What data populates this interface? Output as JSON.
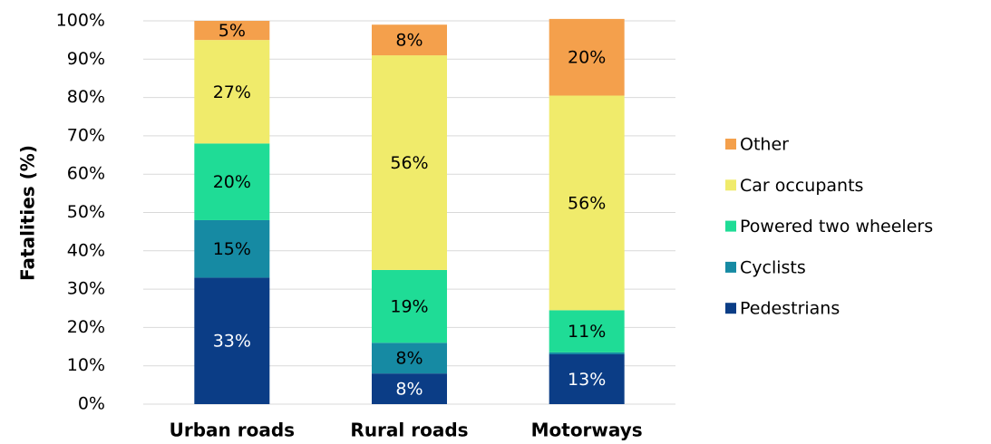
{
  "chart_data": {
    "type": "stacked_bar",
    "y_label": "Fatalities (%)",
    "categories": [
      "Urban roads",
      "Rural roads",
      "Motorways"
    ],
    "series": [
      {
        "name": "Pedestrians",
        "color": "#0b3d86",
        "values": [
          33,
          8,
          13
        ],
        "value_labels": [
          "33%",
          "8%",
          "13%"
        ]
      },
      {
        "name": "Cyclists",
        "color": "#168aa3",
        "values": [
          15,
          8,
          0.5
        ],
        "value_labels": [
          "15%",
          "8%",
          null
        ]
      },
      {
        "name": "Powered two wheelers",
        "color": "#1fdc96",
        "values": [
          20,
          19,
          11
        ],
        "value_labels": [
          "20%",
          "19%",
          "11%"
        ]
      },
      {
        "name": "Car occupants",
        "color": "#f0eb6b",
        "values": [
          27,
          56,
          56
        ],
        "value_labels": [
          "27%",
          "56%",
          "56%"
        ]
      },
      {
        "name": "Other",
        "color": "#f4a04c",
        "values": [
          5,
          8,
          20
        ],
        "value_labels": [
          "5%",
          "8%",
          "20%"
        ]
      }
    ],
    "label_colors": [
      "#ffffff",
      "#000000",
      "#000000",
      "#000000",
      "#000000"
    ],
    "ylim": [
      0,
      100
    ],
    "yticks": [
      {
        "value": 0,
        "label": "0%"
      },
      {
        "value": 10,
        "label": "10%"
      },
      {
        "value": 20,
        "label": "20%"
      },
      {
        "value": 30,
        "label": "30%"
      },
      {
        "value": 40,
        "label": "40%"
      },
      {
        "value": 50,
        "label": "50%"
      },
      {
        "value": 60,
        "label": "60%"
      },
      {
        "value": 70,
        "label": "70%"
      },
      {
        "value": 80,
        "label": "80%"
      },
      {
        "value": 90,
        "label": "90%"
      },
      {
        "value": 100,
        "label": "100%"
      }
    ],
    "grid": true,
    "legend": "right"
  }
}
